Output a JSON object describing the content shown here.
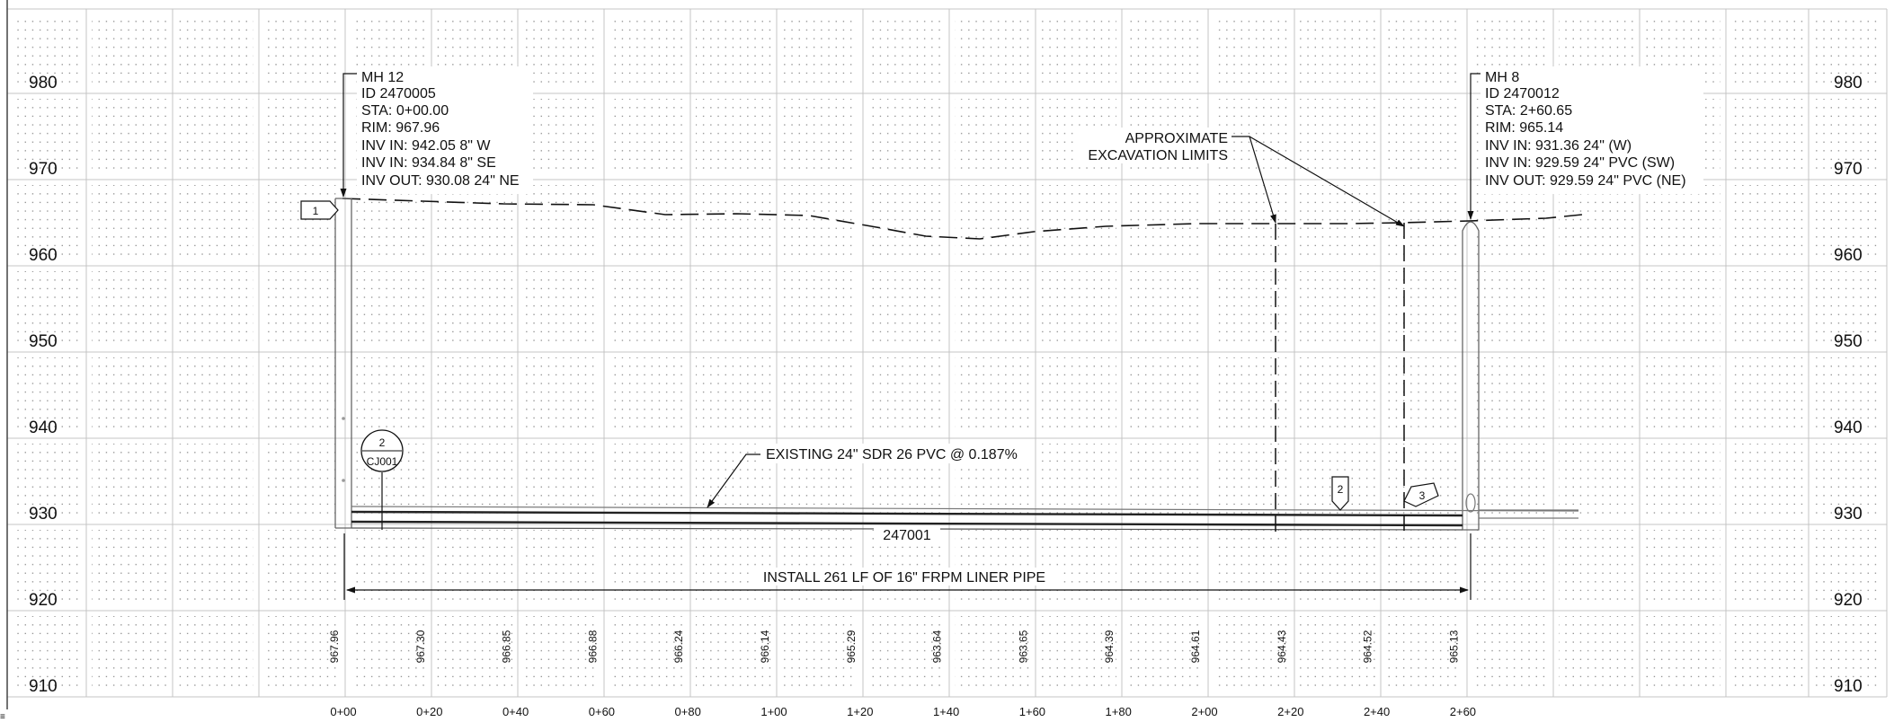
{
  "sheet": {
    "elevations": [
      "980",
      "970",
      "960",
      "950",
      "940",
      "930",
      "920",
      "910"
    ],
    "stations": [
      "0+00",
      "0+20",
      "0+40",
      "0+60",
      "0+80",
      "1+00",
      "1+20",
      "1+40",
      "1+60",
      "1+80",
      "2+00",
      "2+20",
      "2+40",
      "2+60"
    ],
    "ground_elevations": [
      "967.96",
      "967.30",
      "966.85",
      "966.88",
      "966.24",
      "966.14",
      "965.29",
      "963.64",
      "963.65",
      "964.39",
      "964.61",
      "964.43",
      "964.52",
      "965.13"
    ]
  },
  "manhole_left": {
    "lines": [
      "MH 12",
      "ID 2470005",
      "STA: 0+00.00",
      "RIM: 967.96",
      "INV IN: 942.05 8\" W",
      "INV IN: 934.84 8\" SE",
      "INV OUT: 930.08 24\" NE"
    ]
  },
  "manhole_right": {
    "lines": [
      "MH 8",
      "ID 2470012",
      "STA: 2+60.65",
      "RIM: 965.14",
      "INV IN: 931.36 24\" (W)",
      "INV IN: 929.59 24\" PVC (SW)",
      "INV OUT: 929.59 24\" PVC (NE)"
    ]
  },
  "excavation_note": {
    "lines": [
      "APPROXIMATE",
      "EXCAVATION LIMITS"
    ]
  },
  "pipe_note": "EXISTING 24\" SDR 26 PVC @ 0.187%",
  "pipe_id": "247001",
  "liner_note": "INSTALL 261 LF OF 16\" FRPM LINER PIPE",
  "callouts": {
    "tag1": "1",
    "tag2": "2",
    "tag3": "3",
    "detail_num": "2",
    "detail_sheet": "CJ001"
  },
  "corner_mark": "≡",
  "colors": {
    "grid_major": "#c4c4c4",
    "grid_minor": "#8a8a8a",
    "ink": "#111111",
    "pipe": "#222222"
  }
}
